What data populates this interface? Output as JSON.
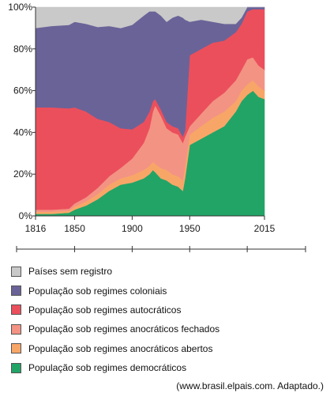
{
  "chart_data": {
    "type": "area",
    "stacked": true,
    "normalized": true,
    "ylim": [
      0,
      100
    ],
    "y_ticks": [
      "0%",
      "20%",
      "40%",
      "60%",
      "80%",
      "100%"
    ],
    "xlim": [
      1816,
      2015
    ],
    "x_ticks": [
      1816,
      1850,
      1900,
      1950,
      2015
    ],
    "x_tick_labels": [
      "1816",
      "1850",
      "1900",
      "1950",
      "2015"
    ],
    "timeline_markers": [
      1850,
      1900,
      1950,
      2000
    ],
    "x": [
      1816,
      1830,
      1845,
      1850,
      1860,
      1870,
      1880,
      1890,
      1900,
      1910,
      1915,
      1918,
      1920,
      1925,
      1930,
      1935,
      1940,
      1944,
      1946,
      1950,
      1960,
      1970,
      1980,
      1990,
      1995,
      2000,
      2005,
      2010,
      2015
    ],
    "series": [
      {
        "name": "População sob regimes democráticos",
        "color": "#22a466",
        "values": [
          1,
          1,
          1.5,
          3,
          5,
          8,
          12,
          15,
          16,
          18,
          20,
          22,
          21,
          18,
          17,
          15,
          14,
          12,
          18,
          34,
          37,
          40,
          43,
          50,
          55,
          58,
          60,
          57,
          56
        ]
      },
      {
        "name": "População sob regimes anocráticos abertos",
        "color": "#f8a668",
        "values": [
          1,
          1,
          1,
          1.5,
          2,
          2.5,
          3,
          3,
          3.5,
          4,
          4,
          4,
          4,
          5,
          5,
          5,
          5,
          5,
          6,
          5,
          6,
          7,
          7,
          5,
          5,
          5,
          5,
          5,
          4
        ]
      },
      {
        "name": "População sob regimes anocráticos fechados",
        "color": "#f39384",
        "values": [
          1,
          1,
          1,
          1.5,
          2,
          3,
          4,
          5,
          8,
          13,
          18,
          24,
          28,
          25,
          20,
          20,
          20,
          18,
          14,
          4,
          6,
          8,
          9,
          10,
          10,
          12,
          11,
          10,
          10
        ]
      },
      {
        "name": "População sob regimes autocráticos",
        "color": "#eb4f5c",
        "values": [
          49,
          49,
          48,
          46,
          41,
          33,
          26,
          19,
          14,
          10,
          8,
          5,
          3,
          3,
          3,
          3,
          3,
          3,
          3,
          34,
          31,
          28,
          25,
          23,
          22,
          23,
          23,
          27,
          29
        ]
      },
      {
        "name": "População sob regimes coloniais",
        "color": "#6a6398",
        "values": [
          38,
          39,
          40,
          41,
          42,
          44,
          46,
          48,
          50,
          51,
          48,
          43,
          42,
          45,
          48,
          52,
          54,
          57,
          53,
          16,
          14,
          10,
          8,
          4,
          3,
          2,
          1,
          1,
          1
        ]
      },
      {
        "name": "Países sem registro",
        "color": "#c9c9c9",
        "values": [
          10,
          9,
          8.5,
          7,
          8,
          9.5,
          9,
          10,
          8.5,
          4,
          2,
          2,
          2,
          4,
          7,
          5,
          4,
          5,
          6,
          7,
          6,
          7,
          8,
          8,
          5,
          0,
          0,
          0,
          0
        ]
      }
    ],
    "legend_order": [
      "Países sem registro",
      "População sob regimes coloniais",
      "População sob regimes autocráticos",
      "População sob regimes anocráticos fechados",
      "População sob regimes anocráticos abertos",
      "População sob regimes democráticos"
    ],
    "legend_placement": "bottom"
  },
  "legend": [
    {
      "label": "Países sem registro",
      "color": "#c9c9c9"
    },
    {
      "label": "População sob regimes coloniais",
      "color": "#6a6398"
    },
    {
      "label": "População sob regimes autocráticos",
      "color": "#eb4f5c"
    },
    {
      "label": "População sob regimes anocráticos fechados",
      "color": "#f39384"
    },
    {
      "label": "População sob regimes anocráticos abertos",
      "color": "#f8a668"
    },
    {
      "label": "População sob regimes democráticos",
      "color": "#22a466"
    }
  ],
  "source": "(www.brasil.elpais.com. Adaptado.)"
}
